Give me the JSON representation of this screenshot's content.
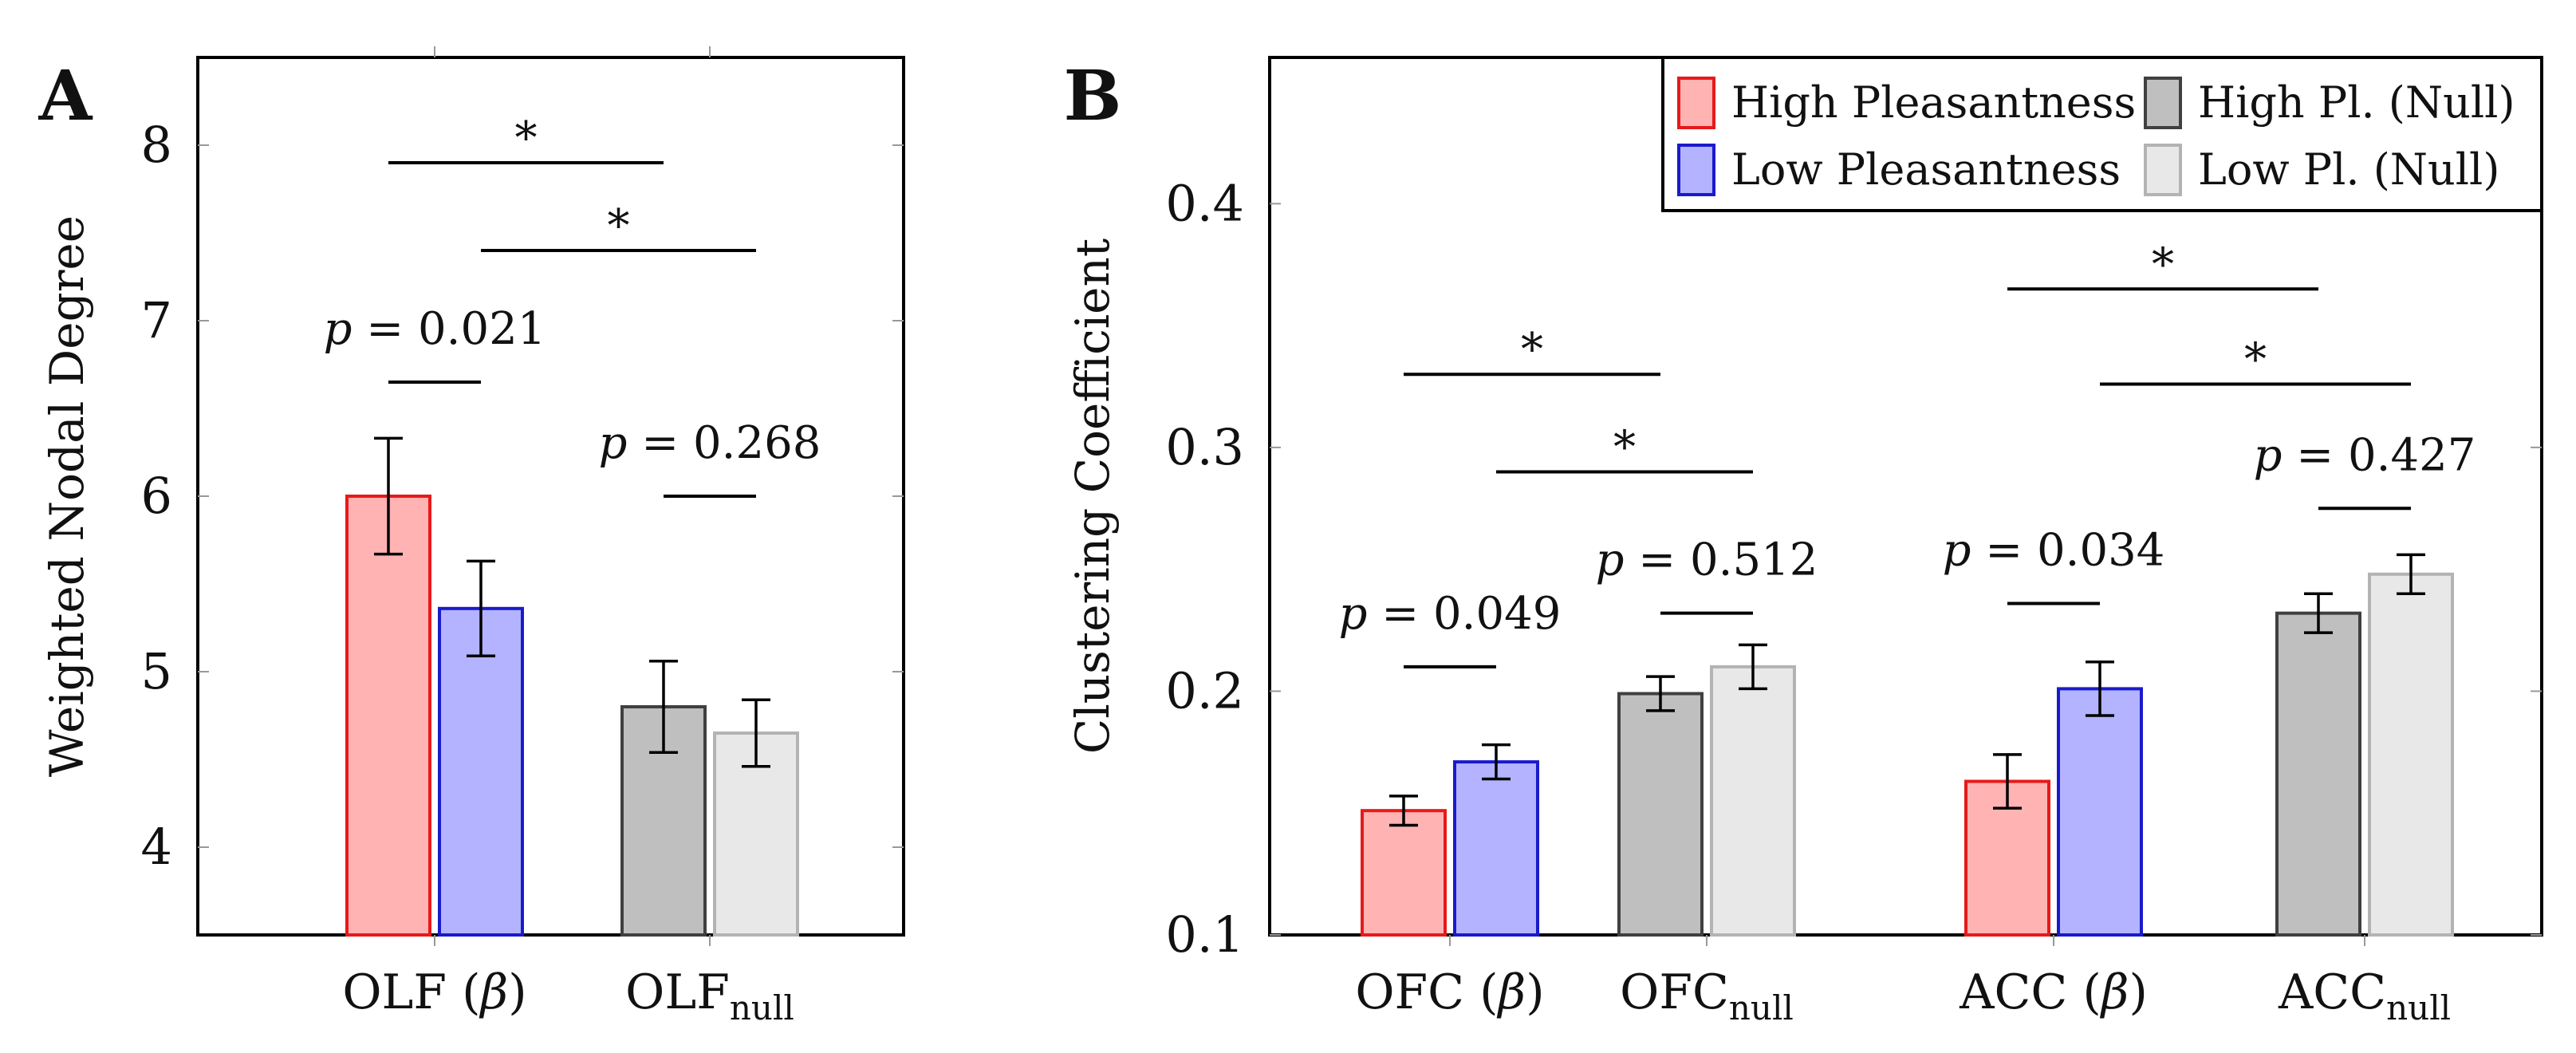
{
  "chart_data": [
    {
      "panel": "A",
      "type": "bar",
      "ylabel": "Weighted Nodal Degree",
      "ylim": [
        3.5,
        8.5
      ],
      "yticks": [
        "4",
        "5",
        "6",
        "7",
        "8"
      ],
      "categories": [
        {
          "main": "OLF (",
          "greek": "β",
          "tail": ")",
          "sub": ""
        },
        {
          "main": "OLF",
          "greek": "",
          "tail": "",
          "sub": "null"
        }
      ],
      "series": [
        {
          "name": "High Pleasantness",
          "cat": 0,
          "value": 6.0,
          "err": 0.33
        },
        {
          "name": "Low Pleasantness",
          "cat": 0,
          "value": 5.36,
          "err": 0.27
        },
        {
          "name": "High Pl. (Null)",
          "cat": 1,
          "value": 4.8,
          "err": 0.26
        },
        {
          "name": "Low Pl. (Null)",
          "cat": 1,
          "value": 4.65,
          "err": 0.19
        }
      ],
      "pvalues": [
        {
          "text": "p = 0.021",
          "cat": 0,
          "y": 6.65
        },
        {
          "text": "p = 0.268",
          "cat": 1,
          "y": 6.0
        }
      ],
      "sig": [
        {
          "text": "*",
          "from": "High Pleasantness",
          "to": "High Pl. (Null)",
          "y": 7.9
        },
        {
          "text": "*",
          "from": "Low Pleasantness",
          "to": "Low Pl. (Null)",
          "y": 7.4
        }
      ]
    },
    {
      "panel": "B",
      "type": "bar",
      "ylabel": "Clustering Coefficient",
      "ylim": [
        0.1,
        0.46
      ],
      "yticks": [
        "0.1",
        "0.2",
        "0.3",
        "0.4"
      ],
      "categories": [
        {
          "main": "OFC (",
          "greek": "β",
          "tail": ")",
          "sub": ""
        },
        {
          "main": "OFC",
          "greek": "",
          "tail": "",
          "sub": "null"
        },
        {
          "main": "ACC (",
          "greek": "β",
          "tail": ")",
          "sub": ""
        },
        {
          "main": "ACC",
          "greek": "",
          "tail": "",
          "sub": "null"
        }
      ],
      "series": [
        {
          "name": "High Pleasantness",
          "values": [
            0.151,
            null,
            0.163,
            null
          ],
          "err": [
            0.006,
            null,
            0.011,
            null
          ]
        },
        {
          "name": "Low Pleasantness",
          "values": [
            0.171,
            null,
            0.201,
            null
          ],
          "err": [
            0.007,
            null,
            0.011,
            null
          ]
        },
        {
          "name": "High Pl. (Null)",
          "values": [
            null,
            0.199,
            null,
            0.232
          ],
          "err": [
            null,
            0.007,
            null,
            0.008
          ]
        },
        {
          "name": "Low Pl. (Null)",
          "values": [
            null,
            0.21,
            null,
            0.248
          ],
          "err": [
            null,
            0.009,
            null,
            0.008
          ]
        }
      ],
      "pvalues": [
        {
          "text": "p = 0.049",
          "cat": 0,
          "y": 0.21
        },
        {
          "text": "p = 0.512",
          "cat": 1,
          "y": 0.232
        },
        {
          "text": "p = 0.034",
          "cat": 2,
          "y": 0.236
        },
        {
          "text": "p = 0.427",
          "cat": 3,
          "y": 0.275
        }
      ],
      "sig": [
        {
          "text": "*",
          "from": [
            0,
            0
          ],
          "to": [
            1,
            0
          ],
          "y": 0.33
        },
        {
          "text": "*",
          "from": [
            0,
            1
          ],
          "to": [
            1,
            1
          ],
          "y": 0.29
        },
        {
          "text": "*",
          "from": [
            2,
            0
          ],
          "to": [
            3,
            0
          ],
          "y": 0.365
        },
        {
          "text": "*",
          "from": [
            2,
            1
          ],
          "to": [
            3,
            1
          ],
          "y": 0.326
        }
      ],
      "legend": {
        "position": "top-right",
        "entries": [
          "High Pleasantness",
          "High Pl. (Null)",
          "Low Pleasantness",
          "Low Pl. (Null)"
        ]
      }
    }
  ],
  "colors": {
    "High Pleasantness": {
      "fill": "#ffb3b3",
      "stroke": "#e8191a"
    },
    "Low Pleasantness": {
      "fill": "#b3b3ff",
      "stroke": "#1a1acc"
    },
    "High Pl. (Null)": {
      "fill": "#bfbfbf",
      "stroke": "#404040"
    },
    "Low Pl. (Null)": {
      "fill": "#e8e8e8",
      "stroke": "#b3b3b3"
    }
  }
}
